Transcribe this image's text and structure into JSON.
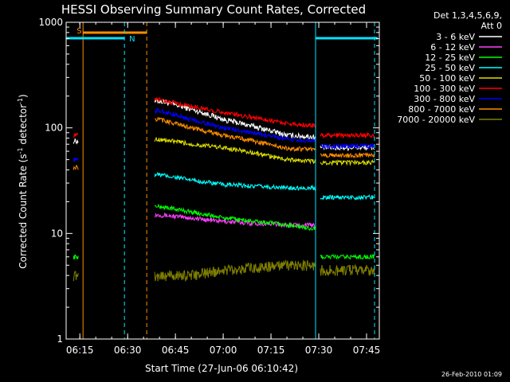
{
  "chart_data": {
    "type": "line",
    "title": "HESSI Observing Summary Count Rates, Corrected",
    "xlabel": "Start Time (27-Jun-06 06:10:42)",
    "ylabel": "Corrected Count Rate (s⁻¹ detector⁻¹)",
    "ylabel_main": "Corrected Count Rate (s",
    "ylabel_mid": " detector",
    "ylabel_end": ")",
    "ylabel_sup": "-1",
    "y_scale": "log",
    "ylim": [
      1,
      1000
    ],
    "xlim": [
      "06:10:42",
      "07:49:00"
    ],
    "x_ticks": [
      "06:15",
      "06:30",
      "06:45",
      "07:00",
      "07:15",
      "07:30",
      "07:45"
    ],
    "y_ticks": [
      "1",
      "10",
      "100",
      "1000"
    ],
    "legend_header": [
      "Det 1,3,4,5,6,9,",
      "Att 0"
    ],
    "legend_position": "right",
    "footer": "26-Feb-2010 01:09",
    "flags": [
      {
        "label": "S",
        "color": "#ff8c00"
      },
      {
        "label": "N",
        "color": "#00e5ff"
      }
    ],
    "series": [
      {
        "name": "3 - 6 keV",
        "color": "#ffffff",
        "values": [
          75,
          180,
          150,
          120,
          85,
          82,
          65
        ]
      },
      {
        "name": "6 - 12 keV",
        "color": "#ff40ff",
        "values": [
          0,
          15,
          14,
          13,
          12,
          12,
          0
        ]
      },
      {
        "name": "12 - 25 keV",
        "color": "#00ff00",
        "values": [
          6,
          18,
          16,
          14,
          12,
          11,
          6
        ]
      },
      {
        "name": "25 - 50 keV",
        "color": "#00ffff",
        "values": [
          0,
          36,
          32,
          29,
          27,
          27,
          22
        ]
      },
      {
        "name": "50 - 100 keV",
        "color": "#e0e000",
        "values": [
          0,
          78,
          70,
          65,
          50,
          48,
          47
        ]
      },
      {
        "name": "100 - 300 keV",
        "color": "#ff0000",
        "values": [
          85,
          185,
          160,
          140,
          110,
          105,
          85
        ]
      },
      {
        "name": "300 - 800 keV",
        "color": "#0000ff",
        "values": [
          50,
          145,
          120,
          100,
          78,
          75,
          67
        ]
      },
      {
        "name": "800 - 7000 keV",
        "color": "#ff8c00",
        "values": [
          42,
          120,
          100,
          85,
          64,
          62,
          55
        ]
      },
      {
        "name": "7000 - 20000 keV",
        "color": "#808000",
        "values": [
          4,
          4,
          4,
          4.5,
          5,
          5,
          4.5
        ]
      }
    ]
  }
}
